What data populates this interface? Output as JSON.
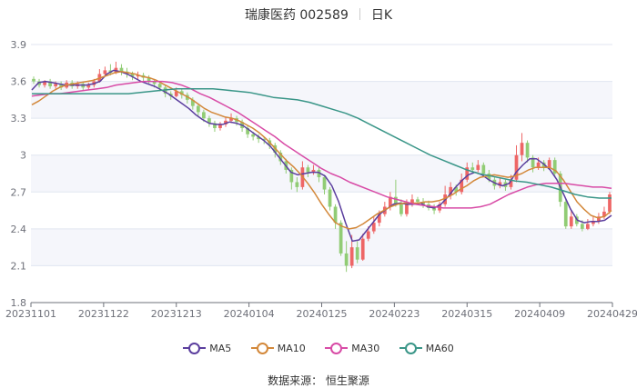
{
  "header": {
    "title": "瑞康医药 002589",
    "period": "日K"
  },
  "footer": {
    "source": "数据来源： 恒生聚源"
  },
  "chart_data": {
    "type": "candlestick",
    "ylim": [
      1.8,
      3.9
    ],
    "yticks": [
      "1.8",
      "2.1",
      "2.4",
      "2.7",
      "3",
      "3.3",
      "3.6",
      "3.9"
    ],
    "ytick_values": [
      1.8,
      2.1,
      2.4,
      2.7,
      3.0,
      3.3,
      3.6,
      3.9
    ],
    "x_labels": [
      "20231101",
      "20231122",
      "20231213",
      "20240104",
      "20240125",
      "20240223",
      "20240315",
      "20240409",
      "20240429"
    ],
    "grid": true,
    "legend_position": "bottom",
    "colors": {
      "up": "#ee6666",
      "down": "#91cc75",
      "grid": "#e0e6f1",
      "band": "#f5f6fb",
      "axis": "#6e7079"
    },
    "candles": [
      [
        3.62,
        3.6,
        3.64,
        3.58
      ],
      [
        3.6,
        3.57,
        3.62,
        3.55
      ],
      [
        3.57,
        3.6,
        3.61,
        3.55
      ],
      [
        3.6,
        3.56,
        3.62,
        3.54
      ],
      [
        3.56,
        3.58,
        3.6,
        3.54
      ],
      [
        3.58,
        3.55,
        3.6,
        3.53
      ],
      [
        3.55,
        3.59,
        3.61,
        3.54
      ],
      [
        3.59,
        3.56,
        3.61,
        3.54
      ],
      [
        3.56,
        3.58,
        3.6,
        3.54
      ],
      [
        3.58,
        3.55,
        3.6,
        3.53
      ],
      [
        3.55,
        3.57,
        3.59,
        3.53
      ],
      [
        3.57,
        3.6,
        3.62,
        3.55
      ],
      [
        3.6,
        3.66,
        3.7,
        3.59
      ],
      [
        3.66,
        3.69,
        3.72,
        3.64
      ],
      [
        3.69,
        3.67,
        3.74,
        3.65
      ],
      [
        3.67,
        3.71,
        3.76,
        3.66
      ],
      [
        3.71,
        3.68,
        3.74,
        3.65
      ],
      [
        3.68,
        3.66,
        3.71,
        3.63
      ],
      [
        3.66,
        3.64,
        3.68,
        3.61
      ],
      [
        3.64,
        3.65,
        3.68,
        3.62
      ],
      [
        3.65,
        3.63,
        3.67,
        3.6
      ],
      [
        3.63,
        3.6,
        3.65,
        3.58
      ],
      [
        3.6,
        3.58,
        3.62,
        3.55
      ],
      [
        3.58,
        3.55,
        3.6,
        3.52
      ],
      [
        3.55,
        3.5,
        3.57,
        3.47
      ],
      [
        3.5,
        3.48,
        3.52,
        3.45
      ],
      [
        3.48,
        3.52,
        3.55,
        3.47
      ],
      [
        3.52,
        3.49,
        3.54,
        3.46
      ],
      [
        3.49,
        3.45,
        3.51,
        3.42
      ],
      [
        3.45,
        3.4,
        3.47,
        3.37
      ],
      [
        3.4,
        3.35,
        3.42,
        3.32
      ],
      [
        3.35,
        3.3,
        3.37,
        3.27
      ],
      [
        3.3,
        3.26,
        3.32,
        3.23
      ],
      [
        3.26,
        3.22,
        3.28,
        3.19
      ],
      [
        3.22,
        3.25,
        3.27,
        3.2
      ],
      [
        3.25,
        3.28,
        3.31,
        3.23
      ],
      [
        3.28,
        3.3,
        3.34,
        3.26
      ],
      [
        3.3,
        3.27,
        3.32,
        3.24
      ],
      [
        3.27,
        3.22,
        3.29,
        3.19
      ],
      [
        3.22,
        3.17,
        3.24,
        3.14
      ],
      [
        3.17,
        3.15,
        3.19,
        3.12
      ],
      [
        3.15,
        3.13,
        3.17,
        3.1
      ],
      [
        3.13,
        3.12,
        3.15,
        3.09
      ],
      [
        3.12,
        3.08,
        3.14,
        3.05
      ],
      [
        3.08,
        3.02,
        3.1,
        2.98
      ],
      [
        3.02,
        2.95,
        3.04,
        2.92
      ],
      [
        2.95,
        2.88,
        2.97,
        2.85
      ],
      [
        2.88,
        2.78,
        2.9,
        2.72
      ],
      [
        2.78,
        2.74,
        2.82,
        2.7
      ],
      [
        2.74,
        2.9,
        2.95,
        2.72
      ],
      [
        2.9,
        2.86,
        2.92,
        2.82
      ],
      [
        2.86,
        2.88,
        2.92,
        2.84
      ],
      [
        2.88,
        2.82,
        2.9,
        2.78
      ],
      [
        2.82,
        2.72,
        2.84,
        2.68
      ],
      [
        2.72,
        2.58,
        2.74,
        2.55
      ],
      [
        2.58,
        2.45,
        2.6,
        2.4
      ],
      [
        2.45,
        2.2,
        2.47,
        2.18
      ],
      [
        2.2,
        2.1,
        2.3,
        2.05
      ],
      [
        2.1,
        2.25,
        2.35,
        2.08
      ],
      [
        2.25,
        2.15,
        2.3,
        2.12
      ],
      [
        2.15,
        2.32,
        2.36,
        2.14
      ],
      [
        2.32,
        2.38,
        2.42,
        2.3
      ],
      [
        2.38,
        2.45,
        2.5,
        2.36
      ],
      [
        2.45,
        2.52,
        2.55,
        2.42
      ],
      [
        2.52,
        2.58,
        2.62,
        2.5
      ],
      [
        2.58,
        2.66,
        2.7,
        2.55
      ],
      [
        2.66,
        2.6,
        2.8,
        2.58
      ],
      [
        2.6,
        2.52,
        2.64,
        2.5
      ],
      [
        2.52,
        2.6,
        2.64,
        2.5
      ],
      [
        2.6,
        2.64,
        2.68,
        2.58
      ],
      [
        2.64,
        2.62,
        2.66,
        2.6
      ],
      [
        2.62,
        2.6,
        2.65,
        2.57
      ],
      [
        2.6,
        2.57,
        2.63,
        2.55
      ],
      [
        2.57,
        2.55,
        2.6,
        2.52
      ],
      [
        2.55,
        2.6,
        2.62,
        2.53
      ],
      [
        2.6,
        2.68,
        2.75,
        2.58
      ],
      [
        2.68,
        2.74,
        2.78,
        2.64
      ],
      [
        2.74,
        2.7,
        2.76,
        2.67
      ],
      [
        2.7,
        2.8,
        2.85,
        2.68
      ],
      [
        2.8,
        2.9,
        2.94,
        2.78
      ],
      [
        2.9,
        2.88,
        2.94,
        2.85
      ],
      [
        2.88,
        2.92,
        2.96,
        2.86
      ],
      [
        2.92,
        2.85,
        2.94,
        2.82
      ],
      [
        2.85,
        2.8,
        2.88,
        2.78
      ],
      [
        2.8,
        2.75,
        2.82,
        2.72
      ],
      [
        2.75,
        2.78,
        2.82,
        2.73
      ],
      [
        2.78,
        2.74,
        2.8,
        2.71
      ],
      [
        2.74,
        2.8,
        2.84,
        2.72
      ],
      [
        2.8,
        3.0,
        3.08,
        2.78
      ],
      [
        3.0,
        3.1,
        3.18,
        2.95
      ],
      [
        3.1,
        2.98,
        3.12,
        2.94
      ],
      [
        2.98,
        2.9,
        3.0,
        2.86
      ],
      [
        2.9,
        2.94,
        2.98,
        2.88
      ],
      [
        2.94,
        2.9,
        2.96,
        2.87
      ],
      [
        2.9,
        2.96,
        2.98,
        2.88
      ],
      [
        2.96,
        2.85,
        2.98,
        2.82
      ],
      [
        2.85,
        2.62,
        2.87,
        2.58
      ],
      [
        2.62,
        2.42,
        2.64,
        2.4
      ],
      [
        2.42,
        2.5,
        2.55,
        2.4
      ],
      [
        2.5,
        2.44,
        2.52,
        2.42
      ],
      [
        2.44,
        2.4,
        2.47,
        2.38
      ],
      [
        2.4,
        2.44,
        2.48,
        2.39
      ],
      [
        2.44,
        2.46,
        2.5,
        2.42
      ],
      [
        2.46,
        2.5,
        2.53,
        2.44
      ],
      [
        2.5,
        2.54,
        2.58,
        2.48
      ],
      [
        2.54,
        2.68,
        2.7,
        2.52
      ]
    ],
    "series": [
      {
        "name": "MA5",
        "color": "#5b3e9e",
        "values": [
          3.53,
          3.59,
          3.6,
          3.59,
          3.58,
          3.57,
          3.57,
          3.57,
          3.57,
          3.58,
          3.6,
          3.66,
          3.69,
          3.68,
          3.66,
          3.63,
          3.6,
          3.58,
          3.56,
          3.53,
          3.5,
          3.46,
          3.42,
          3.38,
          3.33,
          3.29,
          3.26,
          3.25,
          3.25,
          3.27,
          3.26,
          3.24,
          3.2,
          3.16,
          3.12,
          3.07,
          3.0,
          2.93,
          2.86,
          2.84,
          2.85,
          2.86,
          2.86,
          2.83,
          2.75,
          2.62,
          2.45,
          2.3,
          2.31,
          2.38,
          2.45,
          2.52,
          2.56,
          2.6,
          2.61,
          2.6,
          2.6,
          2.61,
          2.58,
          2.57,
          2.6,
          2.66,
          2.73,
          2.79,
          2.84,
          2.86,
          2.84,
          2.8,
          2.77,
          2.75,
          2.77,
          2.86,
          2.92,
          2.97,
          2.97,
          2.93,
          2.88,
          2.8,
          2.68,
          2.56,
          2.47,
          2.45,
          2.46,
          2.46,
          2.47,
          2.51
        ]
      },
      {
        "name": "MA10",
        "color": "#d3883a",
        "values": [
          3.41,
          3.44,
          3.48,
          3.52,
          3.55,
          3.57,
          3.58,
          3.59,
          3.6,
          3.61,
          3.63,
          3.65,
          3.67,
          3.68,
          3.67,
          3.66,
          3.64,
          3.63,
          3.61,
          3.58,
          3.55,
          3.52,
          3.49,
          3.46,
          3.42,
          3.38,
          3.35,
          3.33,
          3.31,
          3.3,
          3.28,
          3.25,
          3.22,
          3.18,
          3.13,
          3.07,
          3.01,
          2.95,
          2.9,
          2.84,
          2.77,
          2.69,
          2.6,
          2.52,
          2.45,
          2.42,
          2.4,
          2.41,
          2.44,
          2.48,
          2.52,
          2.55,
          2.58,
          2.6,
          2.61,
          2.61,
          2.61,
          2.62,
          2.62,
          2.63,
          2.65,
          2.68,
          2.72,
          2.75,
          2.79,
          2.82,
          2.83,
          2.84,
          2.83,
          2.82,
          2.83,
          2.85,
          2.88,
          2.9,
          2.9,
          2.9,
          2.87,
          2.8,
          2.71,
          2.62,
          2.56,
          2.51,
          2.49,
          2.5,
          2.55
        ]
      },
      {
        "name": "MA30",
        "color": "#d84ba6",
        "values": [
          3.48,
          3.49,
          3.5,
          3.5,
          3.51,
          3.52,
          3.53,
          3.54,
          3.55,
          3.57,
          3.58,
          3.59,
          3.6,
          3.6,
          3.6,
          3.59,
          3.57,
          3.54,
          3.5,
          3.47,
          3.43,
          3.39,
          3.35,
          3.3,
          3.25,
          3.2,
          3.15,
          3.09,
          3.04,
          2.99,
          2.94,
          2.89,
          2.85,
          2.82,
          2.78,
          2.75,
          2.72,
          2.69,
          2.66,
          2.64,
          2.62,
          2.6,
          2.59,
          2.58,
          2.57,
          2.57,
          2.57,
          2.57,
          2.58,
          2.6,
          2.64,
          2.68,
          2.71,
          2.74,
          2.76,
          2.77,
          2.77,
          2.77,
          2.76,
          2.75,
          2.74,
          2.74,
          2.73
        ]
      },
      {
        "name": "MA60",
        "color": "#3a9688",
        "values": [
          3.5,
          3.5,
          3.5,
          3.5,
          3.5,
          3.5,
          3.5,
          3.5,
          3.5,
          3.51,
          3.52,
          3.53,
          3.54,
          3.54,
          3.54,
          3.54,
          3.53,
          3.52,
          3.51,
          3.49,
          3.47,
          3.46,
          3.45,
          3.43,
          3.4,
          3.37,
          3.34,
          3.3,
          3.25,
          3.2,
          3.15,
          3.1,
          3.05,
          3.0,
          2.96,
          2.92,
          2.88,
          2.85,
          2.83,
          2.81,
          2.79,
          2.78,
          2.76,
          2.74,
          2.71,
          2.68,
          2.66,
          2.65,
          2.65
        ]
      }
    ]
  }
}
